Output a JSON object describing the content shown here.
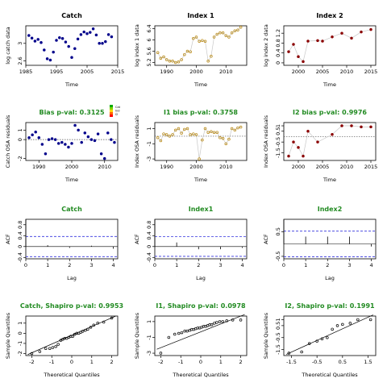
{
  "chart_data": [
    {
      "panel": "catch",
      "type": "scatter",
      "title": "Catch",
      "title_color": "#000000",
      "xlabel": "Time",
      "ylabel": "log catch data",
      "xlim": [
        1985,
        2015
      ],
      "ylim": [
        2.5,
        3.4
      ],
      "xticks": [
        1985,
        1995,
        2005,
        2015
      ],
      "yticks": [
        2.6,
        3.0
      ],
      "point_color": "#00008B",
      "point_style": "filled",
      "x": [
        1986,
        1987,
        1988,
        1989,
        1990,
        1991,
        1992,
        1993,
        1994,
        1995,
        1996,
        1997,
        1998,
        1999,
        2000,
        2001,
        2002,
        2003,
        2004,
        2005,
        2006,
        2007,
        2008,
        2009,
        2010,
        2011,
        2012,
        2013
      ],
      "y": [
        3.18,
        3.12,
        3.05,
        3.09,
        3.02,
        2.85,
        2.65,
        2.62,
        2.8,
        3.07,
        3.13,
        3.11,
        3.03,
        2.93,
        2.68,
        2.88,
        3.1,
        3.2,
        3.26,
        3.22,
        3.25,
        3.33,
        3.19,
        3.0,
        3.0,
        3.04,
        3.2,
        3.15
      ]
    },
    {
      "panel": "index1",
      "type": "line",
      "title": "Index 1",
      "title_color": "#000000",
      "xlabel": "Time",
      "ylabel": "log index 1 data",
      "xlim": [
        1986,
        2017
      ],
      "ylim": [
        5.1,
        6.5
      ],
      "xticks": [
        1990,
        2000,
        2010
      ],
      "yticks": [
        5.2,
        5.6,
        6.0,
        6.4
      ],
      "point_color": "#B8860B",
      "line_color": "#C8C8C8",
      "point_style": "open",
      "x": [
        1987,
        1988,
        1989,
        1990,
        1991,
        1992,
        1993,
        1994,
        1995,
        1996,
        1997,
        1998,
        1999,
        2000,
        2001,
        2002,
        2003,
        2004,
        2005,
        2006,
        2007,
        2008,
        2009,
        2010,
        2011,
        2012,
        2013,
        2014,
        2015
      ],
      "y": [
        5.55,
        5.35,
        5.4,
        5.3,
        5.25,
        5.25,
        5.2,
        5.22,
        5.3,
        5.48,
        5.6,
        5.58,
        6.05,
        6.1,
        5.95,
        5.98,
        5.95,
        5.25,
        5.42,
        6.1,
        6.2,
        6.25,
        6.25,
        6.15,
        6.1,
        6.25,
        6.32,
        6.35,
        6.45
      ]
    },
    {
      "panel": "index2",
      "type": "line",
      "title": "Index 2",
      "title_color": "#000000",
      "xlabel": "Time",
      "ylabel": "log index 2 data",
      "xlim": [
        1997,
        2016
      ],
      "ylim": [
        -0.1,
        1.5
      ],
      "xticks": [
        2000,
        2005,
        2010,
        2015
      ],
      "yticks": [
        0.0,
        0.4,
        0.8,
        1.2
      ],
      "point_color": "#8B0000",
      "line_color": "#C8C8C8",
      "point_style": "filled",
      "x": [
        1998,
        1999,
        2000,
        2001,
        2002,
        2004,
        2005,
        2007,
        2009,
        2011,
        2013,
        2015
      ],
      "y": [
        0.45,
        0.75,
        0.25,
        0.05,
        0.88,
        0.9,
        0.88,
        1.05,
        1.2,
        1.0,
        1.25,
        1.35
      ]
    },
    {
      "panel": "bias_catch",
      "type": "scatter",
      "title": "Bias p-val: 0.3125",
      "title_color": "#228B22",
      "xlabel": "Time",
      "ylabel": "Catch OSA residuals",
      "xlim": [
        1986,
        2014
      ],
      "ylim": [
        -2.2,
        1.8
      ],
      "xticks": [
        1990,
        2000,
        2010
      ],
      "yticks": [
        -2,
        0,
        1
      ],
      "point_color": "#00008B",
      "point_style": "filled",
      "zero_line": 0,
      "legend": {
        "position": "top-right",
        "colors": [
          "#00AA00",
          "#7FD400",
          "#FFD700",
          "#FF6600",
          "#FF0000"
        ],
        "labels": [
          "Cat",
          "Ind",
          "I2"
        ]
      },
      "x": [
        1987,
        1988,
        1989,
        1990,
        1991,
        1992,
        1993,
        1994,
        1995,
        1996,
        1997,
        1998,
        1999,
        2000,
        2001,
        2002,
        2003,
        2004,
        2005,
        2006,
        2007,
        2008,
        2009,
        2010,
        2011,
        2012,
        2013
      ],
      "y": [
        0.2,
        0.5,
        0.8,
        0.2,
        -0.5,
        -1.5,
        0.0,
        0.1,
        0.0,
        -0.4,
        -0.3,
        -0.5,
        -0.8,
        -0.4,
        1.5,
        1.0,
        -0.3,
        0.7,
        0.3,
        0.0,
        -0.1,
        0.6,
        -1.5,
        -2.0,
        0.7,
        0.0,
        -0.3
      ]
    },
    {
      "panel": "bias_i1",
      "type": "line",
      "title": "I1 bias p-val: 0.3758",
      "title_color": "#228B22",
      "xlabel": "Time",
      "ylabel": "Index OSA residuals",
      "xlim": [
        1986,
        2017
      ],
      "ylim": [
        -3.2,
        1.8
      ],
      "xticks": [
        1990,
        2000,
        2010
      ],
      "yticks": [
        -3,
        -1,
        1
      ],
      "point_color": "#B8860B",
      "line_color": "#C8C8C8",
      "point_style": "open",
      "zero_line": 0,
      "x": [
        1987,
        1988,
        1989,
        1990,
        1991,
        1992,
        1993,
        1994,
        1995,
        1996,
        1997,
        1998,
        1999,
        2000,
        2001,
        2002,
        2003,
        2004,
        2005,
        2006,
        2007,
        2008,
        2009,
        2010,
        2011,
        2012,
        2013,
        2014,
        2015
      ],
      "y": [
        -0.2,
        -0.6,
        0.3,
        0.2,
        0.0,
        0.2,
        0.8,
        1.0,
        0.4,
        0.9,
        1.0,
        0.2,
        0.3,
        0.2,
        -3.0,
        -0.5,
        1.0,
        0.5,
        0.6,
        0.5,
        0.5,
        -0.2,
        -0.3,
        -1.0,
        -0.4,
        1.0,
        0.8,
        1.1,
        1.2
      ]
    },
    {
      "panel": "bias_i2",
      "type": "line",
      "title": "I2 bias p-val: 0.9976",
      "title_color": "#228B22",
      "xlabel": "Time",
      "ylabel": "Index OSA residuals",
      "xlim": [
        1997,
        2016
      ],
      "ylim": [
        -2.2,
        1.3
      ],
      "xticks": [
        2000,
        2005,
        2010,
        2015
      ],
      "yticks": [
        -1.5,
        -0.5,
        0.5,
        1.0
      ],
      "point_color": "#8B0000",
      "line_color": "#C8C8C8",
      "point_style": "filled",
      "zero_line": 0,
      "x": [
        1998,
        1999,
        2000,
        2001,
        2002,
        2004,
        2007,
        2009,
        2011,
        2013,
        2015
      ],
      "y": [
        -1.8,
        -0.5,
        -1.0,
        -1.8,
        0.5,
        -0.5,
        0.2,
        1.0,
        1.0,
        0.9,
        0.9
      ]
    },
    {
      "panel": "acf_catch",
      "type": "bar",
      "title": "Catch",
      "title_color": "#228B22",
      "xlabel": "Lag",
      "ylabel": "ACF",
      "xlim": [
        0,
        4.2
      ],
      "ylim": [
        -0.45,
        1.0
      ],
      "xticks": [
        0,
        1,
        2,
        3,
        4
      ],
      "yticks": [
        -0.4,
        0.0,
        0.4,
        0.8
      ],
      "conf_limits": [
        -0.37,
        0.37
      ],
      "x": [
        0,
        1,
        2,
        3,
        4
      ],
      "values": [
        1.0,
        0.05,
        -0.05,
        0.03,
        -0.08
      ]
    },
    {
      "panel": "acf_index1",
      "type": "bar",
      "title": "Index1",
      "title_color": "#228B22",
      "xlabel": "Lag",
      "ylabel": "ACF",
      "xlim": [
        0,
        4.2
      ],
      "ylim": [
        -0.45,
        1.0
      ],
      "xticks": [
        0,
        1,
        2,
        3,
        4
      ],
      "yticks": [
        -0.4,
        0.0,
        0.4,
        0.8
      ],
      "conf_limits": [
        -0.36,
        0.36
      ],
      "x": [
        0,
        1,
        2,
        3,
        4
      ],
      "values": [
        1.0,
        0.15,
        -0.1,
        -0.1,
        -0.05
      ]
    },
    {
      "panel": "acf_index2",
      "type": "bar",
      "title": "Index2",
      "title_color": "#228B22",
      "xlabel": "Lag",
      "ylabel": "ACF",
      "xlim": [
        0,
        4.2
      ],
      "ylim": [
        -0.6,
        1.0
      ],
      "xticks": [
        0,
        1,
        2,
        3,
        4
      ],
      "yticks": [
        -0.5,
        0.5
      ],
      "conf_limits": [
        -0.52,
        0.52
      ],
      "x": [
        0,
        1,
        2,
        3,
        4
      ],
      "values": [
        1.0,
        0.3,
        0.3,
        0.3,
        -0.1
      ]
    },
    {
      "panel": "qq_catch",
      "type": "scatter",
      "title": "Catch, Shapiro p-val: 0.9953",
      "title_color": "#228B22",
      "xlabel": "Theoretical Quantiles",
      "ylabel": "Sample Quantiles",
      "xlim": [
        -2.3,
        2.3
      ],
      "ylim": [
        -2.2,
        1.7
      ],
      "xticks": [
        -2,
        -1,
        0,
        1,
        2
      ],
      "yticks": [
        -2,
        -1,
        0,
        1
      ],
      "point_style": "open",
      "point_color": "#000000",
      "qq_line": [
        [
          -2.2,
          -2.1
        ],
        [
          2.2,
          1.7
        ]
      ],
      "x": [
        -2.0,
        -1.6,
        -1.3,
        -1.1,
        -0.95,
        -0.8,
        -0.68,
        -0.55,
        -0.45,
        -0.35,
        -0.25,
        -0.15,
        -0.05,
        0.05,
        0.15,
        0.25,
        0.35,
        0.45,
        0.55,
        0.68,
        0.8,
        0.95,
        1.1,
        1.3,
        1.6,
        2.0
      ],
      "y": [
        -2.0,
        -1.8,
        -1.5,
        -1.5,
        -1.4,
        -1.3,
        -1.1,
        -0.7,
        -0.6,
        -0.5,
        -0.5,
        -0.4,
        -0.3,
        -0.3,
        -0.1,
        0.0,
        0.0,
        0.1,
        0.2,
        0.3,
        0.4,
        0.6,
        0.8,
        1.0,
        1.1,
        1.5
      ]
    },
    {
      "panel": "qq_i1",
      "type": "scatter",
      "title": "I1, Shapiro p-val: 0.0978",
      "title_color": "#228B22",
      "xlabel": "Theoretical Quantiles",
      "ylabel": "Sample Quantiles",
      "xlim": [
        -2.3,
        2.3
      ],
      "ylim": [
        -3.3,
        1.7
      ],
      "xticks": [
        -2,
        -1,
        0,
        1,
        2
      ],
      "yticks": [
        -3,
        -1,
        1
      ],
      "point_style": "open",
      "point_color": "#000000",
      "qq_line": [
        [
          -2.2,
          -2.5
        ],
        [
          2.2,
          1.9
        ]
      ],
      "x": [
        -2.0,
        -1.6,
        -1.3,
        -1.1,
        -0.95,
        -0.8,
        -0.68,
        -0.55,
        -0.45,
        -0.35,
        -0.25,
        -0.15,
        -0.05,
        0.05,
        0.15,
        0.25,
        0.35,
        0.45,
        0.55,
        0.68,
        0.8,
        0.95,
        1.1,
        1.3,
        1.6,
        2.0
      ],
      "y": [
        -3.0,
        -1.0,
        -0.6,
        -0.5,
        -0.4,
        -0.2,
        -0.2,
        -0.1,
        0.0,
        0.0,
        0.1,
        0.2,
        0.2,
        0.3,
        0.4,
        0.4,
        0.5,
        0.6,
        0.6,
        0.8,
        0.9,
        1.0,
        1.0,
        1.1,
        1.2,
        1.2
      ]
    },
    {
      "panel": "qq_i2",
      "type": "scatter",
      "title": "I2, Shapiro p-val: 0.1991",
      "title_color": "#228B22",
      "xlabel": "Theoretical Quantiles",
      "ylabel": "Sample Quantiles",
      "xlim": [
        -1.8,
        1.8
      ],
      "ylim": [
        -2.0,
        1.3
      ],
      "xticks": [
        -1.5,
        -0.5,
        0.5,
        1.5
      ],
      "yticks": [
        -1.5,
        -0.5,
        0.5,
        1.0
      ],
      "point_style": "open",
      "point_color": "#000000",
      "qq_line": [
        [
          -1.7,
          -1.9
        ],
        [
          1.7,
          1.4
        ]
      ],
      "x": [
        -1.6,
        -1.1,
        -0.8,
        -0.5,
        -0.3,
        -0.1,
        0.1,
        0.3,
        0.5,
        0.8,
        1.1,
        1.6
      ],
      "y": [
        -1.8,
        -1.7,
        -1.0,
        -0.8,
        -0.6,
        -0.5,
        0.2,
        0.5,
        0.6,
        0.7,
        1.0,
        1.0
      ]
    }
  ]
}
